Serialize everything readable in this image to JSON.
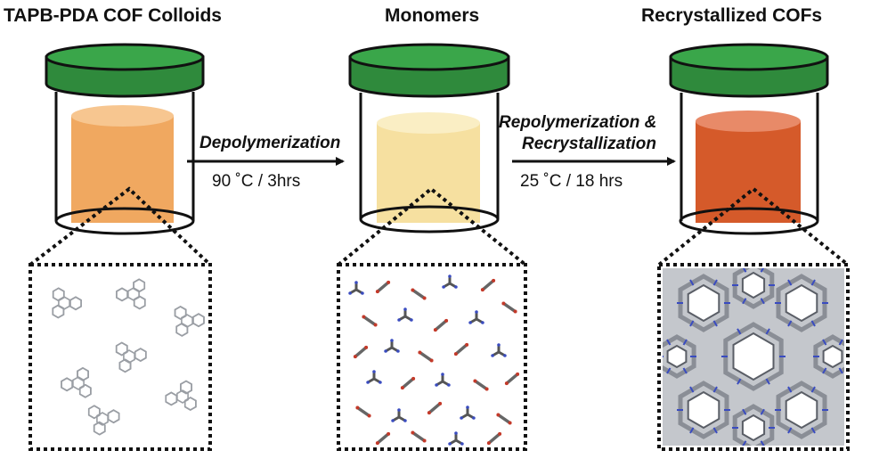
{
  "stages": [
    {
      "title": "TAPB-PDA COF Colloids",
      "liquid_color": "#f0a860",
      "liquid_top_color": "#f7c690",
      "molecule_style": "colloids"
    },
    {
      "title": "Monomers",
      "liquid_color": "#f6e0a0",
      "liquid_top_color": "#faeec4",
      "molecule_style": "monomers"
    },
    {
      "title": "Recrystallized COFs",
      "liquid_color": "#d55a2a",
      "liquid_top_color": "#e88a68",
      "molecule_style": "framework"
    }
  ],
  "steps": [
    {
      "name": "Depolymerization",
      "conditions": "90 ˚C / 3hrs"
    },
    {
      "name_line1": "Repolymerization &",
      "name_line2": "Recrystallization",
      "conditions": "25 ˚C / 18 hrs"
    }
  ],
  "colors": {
    "lid_top": "#3aa64a",
    "lid_body": "#2f8a3c",
    "outline": "#111111",
    "atom_gray": "#9a9ea4",
    "atom_red": "#c43a2a",
    "atom_blue": "#3a4cc0"
  }
}
